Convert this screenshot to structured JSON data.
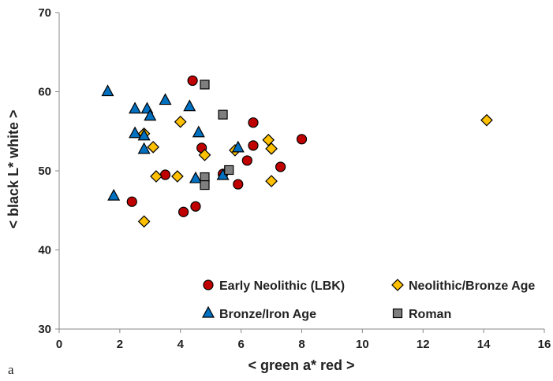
{
  "panel_label": "a",
  "chart_data": {
    "type": "scatter",
    "title": "",
    "xlabel": "<    green         a*        red    >",
    "ylabel": "<   black         L*         white   >",
    "xlim": [
      0,
      16
    ],
    "ylim": [
      30,
      70
    ],
    "x_ticks": [
      0,
      2,
      4,
      6,
      8,
      10,
      12,
      14,
      16
    ],
    "y_ticks": [
      30,
      40,
      50,
      60,
      70
    ],
    "grid": false,
    "legend_placement": "bottom-right",
    "series": [
      {
        "name": "Early Neolithic (LBK)",
        "marker": "circle",
        "color": "#c00000",
        "points": [
          [
            4.4,
            61.4
          ],
          [
            6.4,
            56.1
          ],
          [
            8.0,
            54.0
          ],
          [
            4.7,
            52.9
          ],
          [
            6.4,
            53.2
          ],
          [
            6.2,
            51.3
          ],
          [
            7.3,
            50.5
          ],
          [
            3.5,
            49.5
          ],
          [
            5.9,
            48.3
          ],
          [
            5.4,
            49.6
          ],
          [
            2.4,
            46.1
          ],
          [
            4.1,
            44.8
          ],
          [
            4.5,
            45.5
          ]
        ]
      },
      {
        "name": "Neolithic/Bronze Age",
        "marker": "diamond",
        "color": "#ffc000",
        "points": [
          [
            14.1,
            56.4
          ],
          [
            4.0,
            56.2
          ],
          [
            6.9,
            53.9
          ],
          [
            7.0,
            52.8
          ],
          [
            3.1,
            53.0
          ],
          [
            5.8,
            52.6
          ],
          [
            2.8,
            54.7
          ],
          [
            4.8,
            52.0
          ],
          [
            3.2,
            49.3
          ],
          [
            3.9,
            49.3
          ],
          [
            7.0,
            48.7
          ],
          [
            2.8,
            43.6
          ]
        ]
      },
      {
        "name": "Bronze/Iron Age",
        "marker": "triangle",
        "color": "#0070c0",
        "points": [
          [
            1.6,
            60.0
          ],
          [
            2.5,
            57.8
          ],
          [
            2.9,
            57.8
          ],
          [
            3.0,
            56.9
          ],
          [
            3.5,
            58.9
          ],
          [
            4.3,
            58.1
          ],
          [
            4.6,
            54.8
          ],
          [
            2.5,
            54.7
          ],
          [
            2.8,
            54.4
          ],
          [
            2.8,
            52.7
          ],
          [
            5.9,
            52.9
          ],
          [
            4.5,
            49.0
          ],
          [
            5.4,
            49.4
          ],
          [
            1.8,
            46.8
          ]
        ]
      },
      {
        "name": "Roman",
        "marker": "square",
        "color": "#7f7f7f",
        "points": [
          [
            4.8,
            60.9
          ],
          [
            5.4,
            57.1
          ],
          [
            5.6,
            50.1
          ],
          [
            4.8,
            49.2
          ],
          [
            4.8,
            48.2
          ]
        ]
      }
    ]
  }
}
